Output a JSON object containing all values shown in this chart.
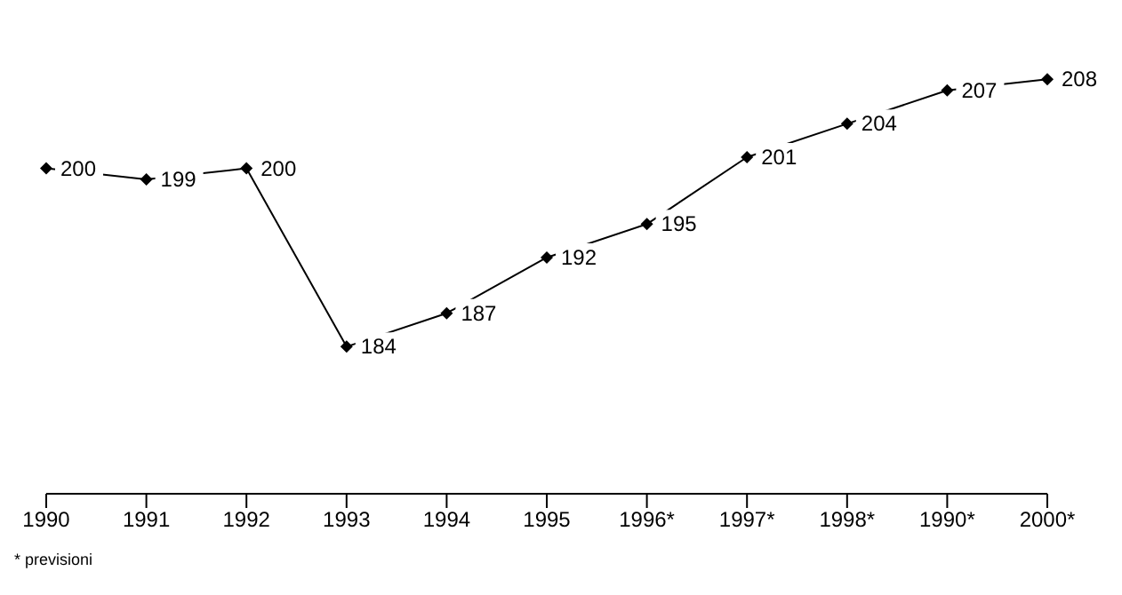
{
  "chart_data": {
    "type": "line",
    "categories": [
      "1990",
      "1991",
      "1992",
      "1993",
      "1994",
      "1995",
      "1996*",
      "1997*",
      "1998*",
      "1990*",
      "2000*"
    ],
    "series": [
      {
        "color": "#000000",
        "values": [
          200,
          199,
          200,
          184,
          187,
          192,
          195,
          201,
          204,
          207,
          208
        ]
      }
    ],
    "data_labels": true,
    "marker": "diamond",
    "line_style": "solid",
    "grid": false,
    "legend": false,
    "tick_labels": "x",
    "annotations": [
      "* previsioni"
    ]
  }
}
